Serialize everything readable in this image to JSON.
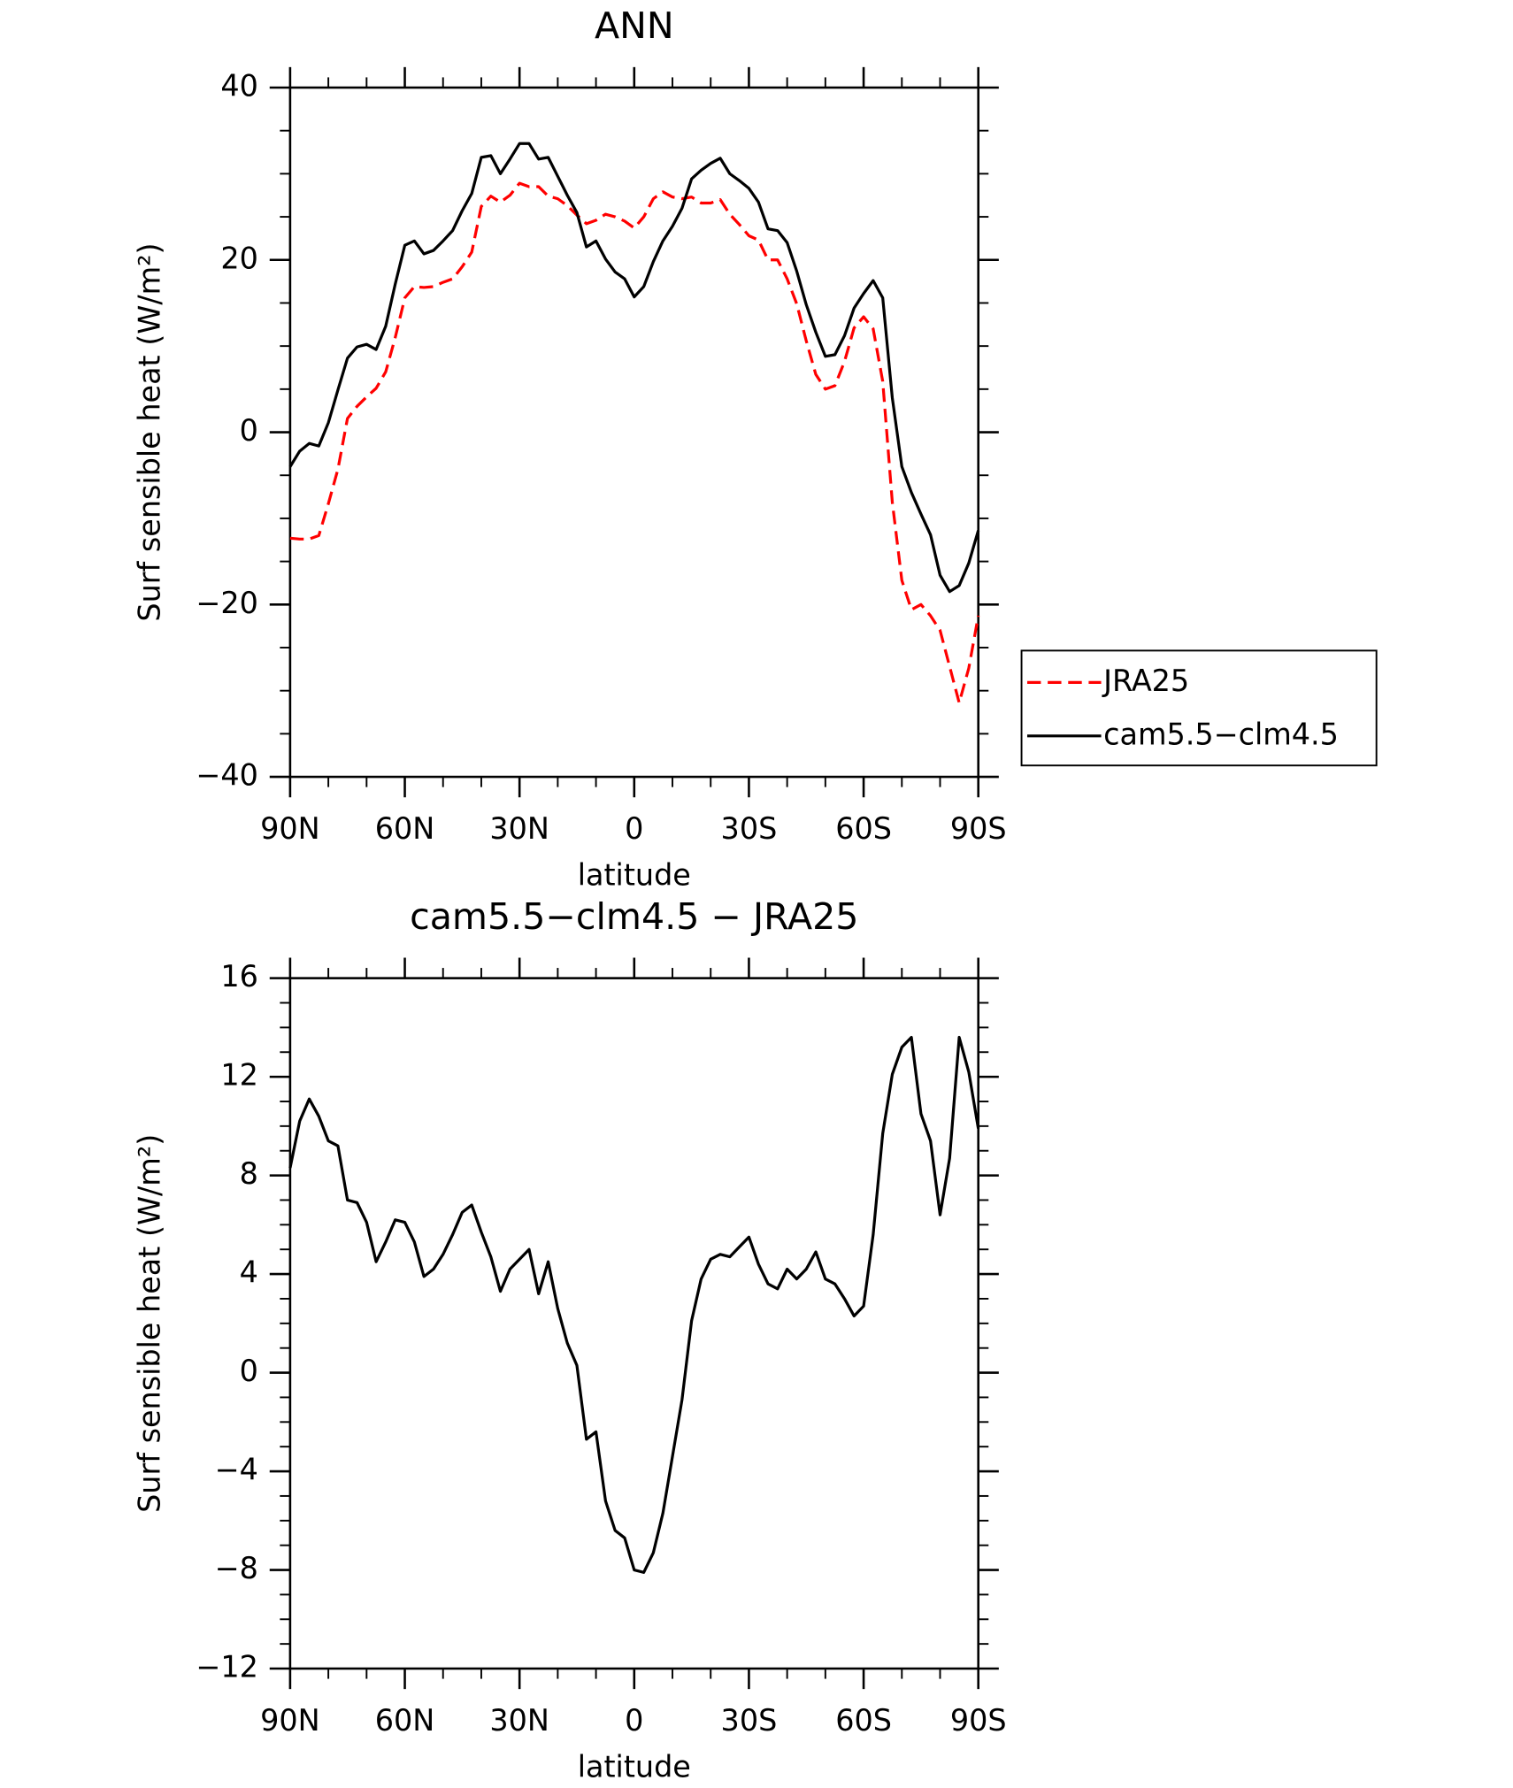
{
  "chart_data": [
    {
      "type": "line",
      "title": "ANN",
      "xlabel": "latitude",
      "ylabel": "Surf sensible heat (W/m²)",
      "x": [
        90,
        87.5,
        85,
        82.5,
        80,
        77.5,
        75,
        72.5,
        70,
        67.5,
        65,
        62.5,
        60,
        57.5,
        55,
        52.5,
        50,
        47.5,
        45,
        42.5,
        40,
        37.5,
        35,
        32.5,
        30,
        27.5,
        25,
        22.5,
        20,
        17.5,
        15,
        12.5,
        10,
        7.5,
        5,
        2.5,
        0,
        -2.5,
        -5,
        -7.5,
        -10,
        -12.5,
        -15,
        -17.5,
        -20,
        -22.5,
        -25,
        -27.5,
        -30,
        -32.5,
        -35,
        -37.5,
        -40,
        -42.5,
        -45,
        -47.5,
        -50,
        -52.5,
        -55,
        -57.5,
        -60,
        -62.5,
        -65,
        -67.5,
        -70,
        -72.5,
        -75,
        -77.5,
        -80,
        -82.5,
        -85,
        -87.5,
        -90
      ],
      "xlim": [
        90,
        -90
      ],
      "xticks": [
        {
          "value": 90,
          "label": "90N"
        },
        {
          "value": 60,
          "label": "60N"
        },
        {
          "value": 30,
          "label": "30N"
        },
        0,
        {
          "value": -30,
          "label": "30S"
        },
        {
          "value": -60,
          "label": "60S"
        },
        {
          "value": -90,
          "label": "90S"
        }
      ],
      "ylim": [
        -40,
        40
      ],
      "yticks": [
        {
          "value": -40,
          "label": "−40"
        },
        {
          "value": -20,
          "label": "−20"
        },
        0,
        20,
        40
      ],
      "legend": "right",
      "series": [
        {
          "name": "JRA25",
          "color": "#ff0000",
          "linestyle": "dashed",
          "values": [
            -12.3,
            -12.4,
            -12.4,
            -12.0,
            -8.3,
            -4.3,
            1.6,
            3.0,
            4.1,
            5.1,
            7.0,
            11.0,
            15.6,
            16.9,
            16.8,
            16.9,
            17.4,
            17.8,
            19.2,
            20.9,
            26.2,
            27.4,
            26.7,
            27.5,
            28.9,
            28.5,
            28.5,
            27.4,
            27.1,
            26.3,
            25.2,
            24.2,
            24.6,
            25.3,
            25.0,
            24.5,
            23.7,
            25.0,
            27.1,
            27.9,
            27.3,
            27.1,
            27.3,
            26.6,
            26.6,
            27.0,
            25.3,
            24.1,
            22.8,
            22.3,
            20.0,
            20.0,
            17.8,
            14.9,
            10.6,
            6.7,
            5.0,
            5.4,
            8.2,
            12.1,
            13.4,
            12.0,
            5.9,
            -8.1,
            -17.2,
            -20.6,
            -20.0,
            -21.3,
            -23.0,
            -27.2,
            -31.4,
            -27.4,
            -21.3
          ]
        },
        {
          "name": "cam5.5−clm4.5",
          "color": "#000000",
          "linestyle": "solid",
          "values": [
            -4.0,
            -2.2,
            -1.3,
            -1.6,
            1.1,
            4.9,
            8.6,
            9.9,
            10.2,
            9.6,
            12.3,
            17.2,
            21.7,
            22.2,
            20.7,
            21.1,
            22.2,
            23.4,
            25.7,
            27.7,
            31.9,
            32.1,
            30.0,
            31.7,
            33.5,
            33.5,
            31.7,
            31.9,
            29.7,
            27.5,
            25.5,
            21.5,
            22.2,
            20.1,
            18.6,
            17.8,
            15.7,
            16.9,
            19.8,
            22.2,
            23.9,
            26.0,
            29.4,
            30.4,
            31.2,
            31.8,
            30.0,
            29.2,
            28.3,
            26.7,
            23.6,
            23.4,
            22.0,
            18.7,
            14.8,
            11.6,
            8.8,
            9.0,
            11.2,
            14.4,
            16.1,
            17.6,
            15.6,
            4.0,
            -4.0,
            -7.0,
            -9.5,
            -11.9,
            -16.6,
            -18.5,
            -17.8,
            -15.2,
            -11.4
          ]
        }
      ]
    },
    {
      "type": "line",
      "title": "cam5.5−clm4.5 − JRA25",
      "xlabel": "latitude",
      "ylabel": "Surf sensible heat (W/m²)",
      "x": [
        90,
        87.5,
        85,
        82.5,
        80,
        77.5,
        75,
        72.5,
        70,
        67.5,
        65,
        62.5,
        60,
        57.5,
        55,
        52.5,
        50,
        47.5,
        45,
        42.5,
        40,
        37.5,
        35,
        32.5,
        30,
        27.5,
        25,
        22.5,
        20,
        17.5,
        15,
        12.5,
        10,
        7.5,
        5,
        2.5,
        0,
        -2.5,
        -5,
        -7.5,
        -10,
        -12.5,
        -15,
        -17.5,
        -20,
        -22.5,
        -25,
        -27.5,
        -30,
        -32.5,
        -35,
        -37.5,
        -40,
        -42.5,
        -45,
        -47.5,
        -50,
        -52.5,
        -55,
        -57.5,
        -60,
        -62.5,
        -65,
        -67.5,
        -70,
        -72.5,
        -75,
        -77.5,
        -80,
        -82.5,
        -85,
        -87.5,
        -90
      ],
      "xlim": [
        90,
        -90
      ],
      "xticks": [
        {
          "value": 90,
          "label": "90N"
        },
        {
          "value": 60,
          "label": "60N"
        },
        {
          "value": 30,
          "label": "30N"
        },
        0,
        {
          "value": -30,
          "label": "30S"
        },
        {
          "value": -60,
          "label": "60S"
        },
        {
          "value": -90,
          "label": "90S"
        }
      ],
      "ylim": [
        -12,
        16
      ],
      "yticks": [
        {
          "value": -12,
          "label": "−12"
        },
        {
          "value": -8,
          "label": "−8"
        },
        {
          "value": -4,
          "label": "−4"
        },
        0,
        4,
        8,
        12,
        16
      ],
      "color": "#000000",
      "values": [
        8.3,
        10.2,
        11.1,
        10.4,
        9.4,
        9.2,
        7.0,
        6.9,
        6.1,
        4.5,
        5.3,
        6.2,
        6.1,
        5.3,
        3.9,
        4.2,
        4.8,
        5.6,
        6.5,
        6.8,
        5.7,
        4.7,
        3.3,
        4.2,
        4.6,
        5.0,
        3.2,
        4.5,
        2.6,
        1.2,
        0.3,
        -2.7,
        -2.4,
        -5.2,
        -6.4,
        -6.7,
        -8.0,
        -8.1,
        -7.3,
        -5.7,
        -3.4,
        -1.1,
        2.1,
        3.8,
        4.6,
        4.8,
        4.7,
        5.1,
        5.5,
        4.4,
        3.6,
        3.4,
        4.2,
        3.8,
        4.2,
        4.9,
        3.8,
        3.6,
        3.0,
        2.3,
        2.7,
        5.6,
        9.7,
        12.1,
        13.2,
        13.6,
        10.5,
        9.4,
        6.4,
        8.7,
        13.6,
        12.2,
        9.9
      ]
    }
  ]
}
